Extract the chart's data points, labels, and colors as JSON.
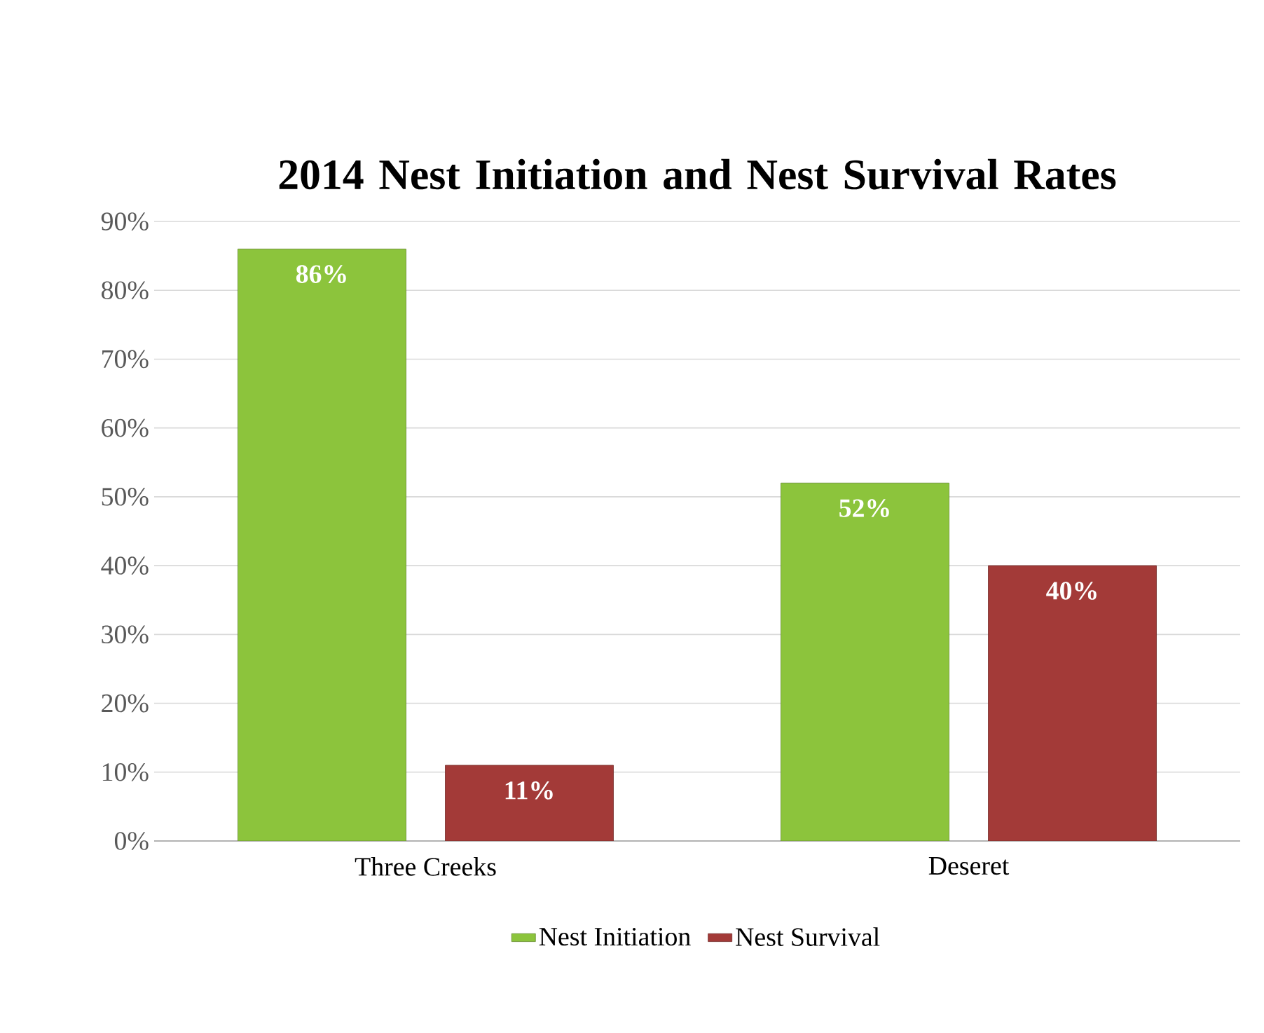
{
  "chart_data": {
    "type": "bar",
    "title": "2014 Nest Initiation and Nest Survival Rates",
    "categories": [
      "Three Creeks",
      "Deseret"
    ],
    "series": [
      {
        "name": "Nest Initiation",
        "color": "#8cc43c",
        "values": [
          86,
          52
        ],
        "value_labels": [
          "86%",
          "52%"
        ]
      },
      {
        "name": "Nest Survival",
        "color": "#a33a38",
        "values": [
          11,
          40
        ],
        "value_labels": [
          "11%",
          "40%"
        ]
      }
    ],
    "ylim": [
      0,
      90
    ],
    "yticks": [
      {
        "value": 0,
        "label": "0%"
      },
      {
        "value": 10,
        "label": "10%"
      },
      {
        "value": 20,
        "label": "20%"
      },
      {
        "value": 30,
        "label": "30%"
      },
      {
        "value": 40,
        "label": "40%"
      },
      {
        "value": 50,
        "label": "50%"
      },
      {
        "value": 60,
        "label": "60%"
      },
      {
        "value": 70,
        "label": "70%"
      },
      {
        "value": 80,
        "label": "80%"
      },
      {
        "value": 90,
        "label": "90%"
      }
    ],
    "grid": "y",
    "legend": "bottom"
  }
}
